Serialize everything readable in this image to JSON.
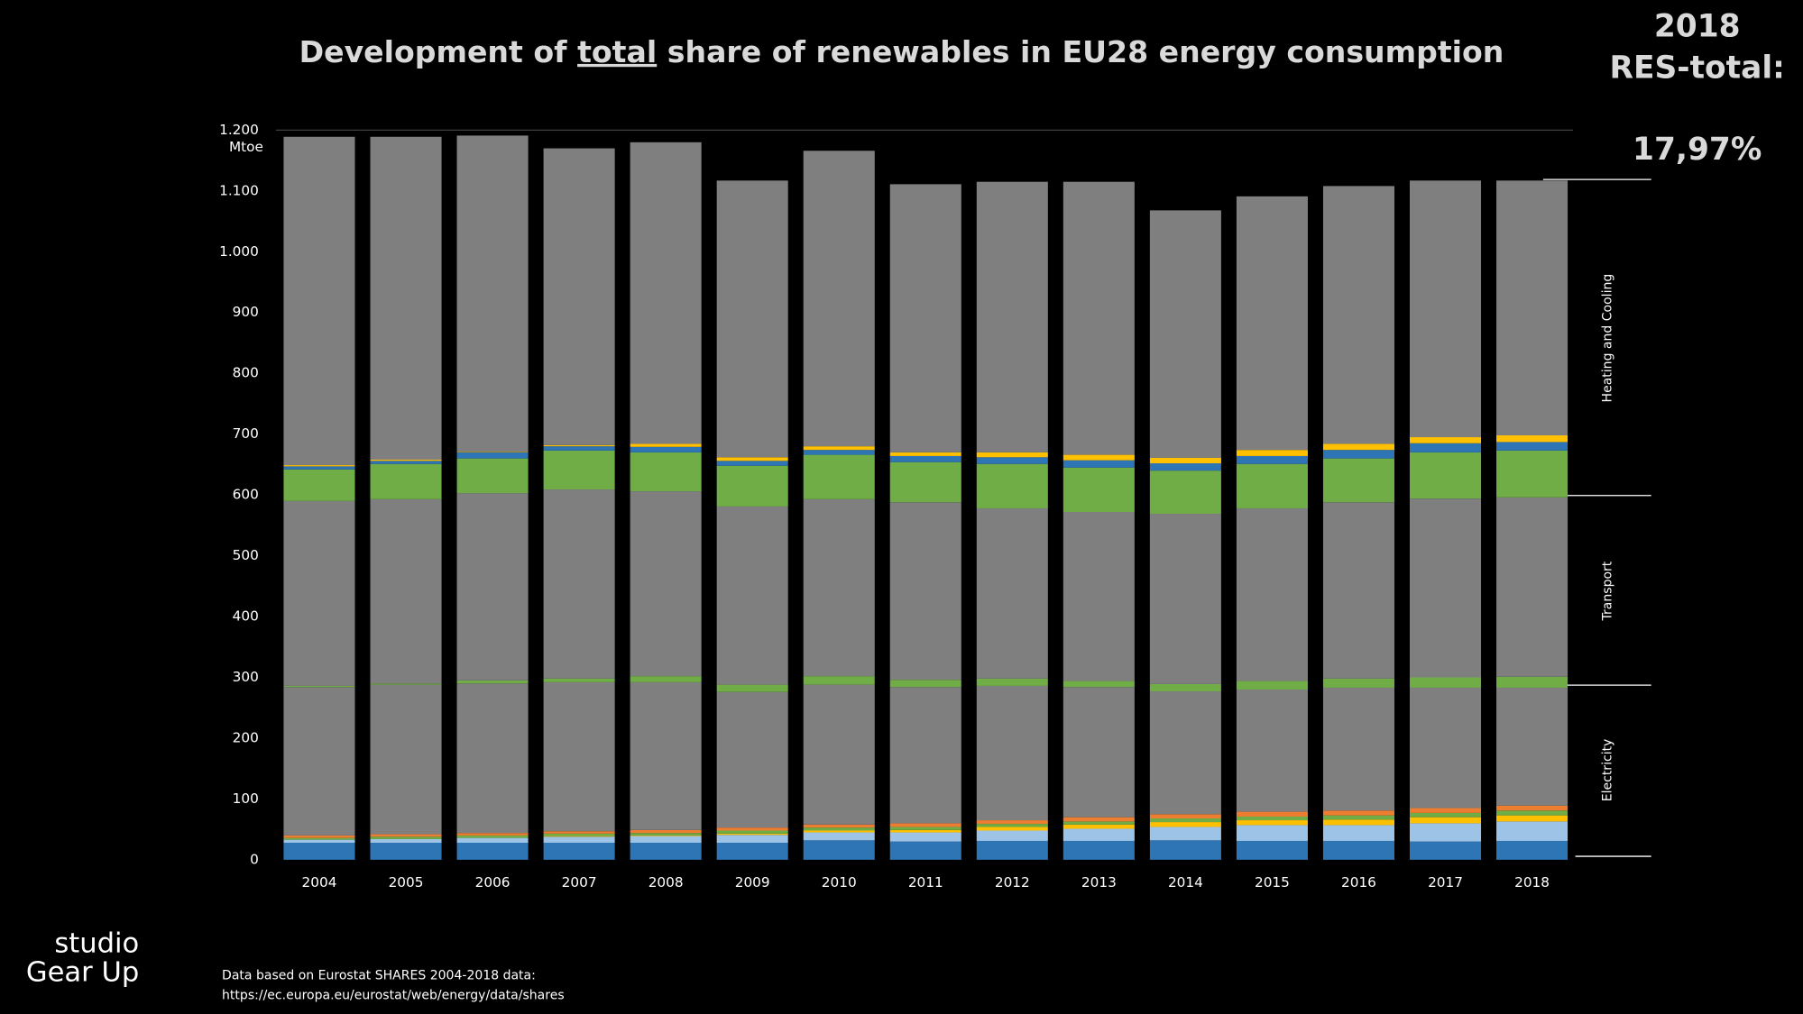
{
  "chart_data": {
    "type": "stacked_bar",
    "title_parts": [
      "Development of ",
      "total",
      " share of renewables in EU28 energy consumption"
    ],
    "y_unit": "Mtoe",
    "categories": [
      "2004",
      "2005",
      "2006",
      "2007",
      "2008",
      "2009",
      "2010",
      "2011",
      "2012",
      "2013",
      "2014",
      "2015",
      "2016",
      "2017",
      "2018"
    ],
    "series": [
      {
        "color": "#2e75b6",
        "values": [
          28,
          28,
          28,
          28,
          28,
          28,
          32,
          30,
          31,
          31,
          32,
          31,
          31,
          30,
          31
        ]
      },
      {
        "color": "#9dc3e6",
        "values": [
          5,
          6,
          8,
          10,
          11,
          13,
          13,
          15,
          17,
          20,
          22,
          26,
          26,
          30,
          32
        ]
      },
      {
        "color": "#ffc000",
        "values": [
          0,
          0,
          0,
          1,
          1,
          2,
          3,
          4,
          6,
          7,
          8,
          8,
          9,
          10,
          10
        ]
      },
      {
        "color": "#70ad47",
        "values": [
          3,
          4,
          4,
          4,
          4,
          5,
          5,
          5,
          5,
          5,
          6,
          6,
          7,
          7,
          8
        ]
      },
      {
        "color": "#ed7d31",
        "values": [
          4,
          4,
          4,
          4,
          5,
          5,
          5,
          6,
          6,
          7,
          7,
          8,
          8,
          8,
          8
        ]
      },
      {
        "color": "#7f7f7f",
        "values": [
          244,
          246,
          246,
          245,
          243,
          223,
          230,
          224,
          221,
          214,
          202,
          201,
          202,
          198,
          194
        ]
      },
      {
        "color": "#70ad47",
        "values": [
          2,
          2,
          5,
          6,
          10,
          12,
          14,
          12,
          12,
          10,
          12,
          14,
          15,
          17,
          18
        ]
      },
      {
        "color": "#7f7f7f",
        "values": [
          304,
          303,
          308,
          311,
          304,
          293,
          291,
          292,
          280,
          278,
          280,
          284,
          290,
          294,
          295
        ]
      },
      {
        "color": "#70ad47",
        "values": [
          52,
          58,
          57,
          64,
          64,
          67,
          73,
          66,
          73,
          73,
          71,
          73,
          72,
          76,
          77
        ]
      },
      {
        "color": "#2e75b6",
        "values": [
          5,
          5,
          10,
          7,
          9,
          8,
          8,
          10,
          11,
          12,
          12,
          13,
          14,
          15,
          14
        ]
      },
      {
        "color": "#ffc000",
        "values": [
          2,
          2,
          1,
          2,
          5,
          6,
          6,
          6,
          8,
          9,
          9,
          10,
          10,
          10,
          11
        ]
      },
      {
        "color": "#7f7f7f",
        "values": [
          540,
          531,
          520,
          488,
          496,
          455,
          486,
          441,
          445,
          449,
          407,
          417,
          424,
          422,
          419
        ]
      }
    ],
    "ylim": [
      0,
      1200
    ],
    "yticks": [
      0,
      100,
      200,
      300,
      400,
      500,
      600,
      700,
      800,
      900,
      {
        "value": 1000,
        "label": "1.000"
      },
      {
        "value": 1100,
        "label": "1.100"
      },
      {
        "value": 1200,
        "label": "1.200"
      }
    ],
    "sectors": [
      "Heating and Cooling",
      "Transport",
      "Electricity"
    ],
    "highlight": {
      "year": "2018",
      "label": "RES-total:",
      "value": "17,97%"
    },
    "source": [
      "Data  based on Eurostat SHARES 2004-2018 data:",
      "https://ec.europa.eu/eurostat/web/energy/data/shares"
    ],
    "brand": [
      "studio",
      "Gear Up"
    ]
  }
}
